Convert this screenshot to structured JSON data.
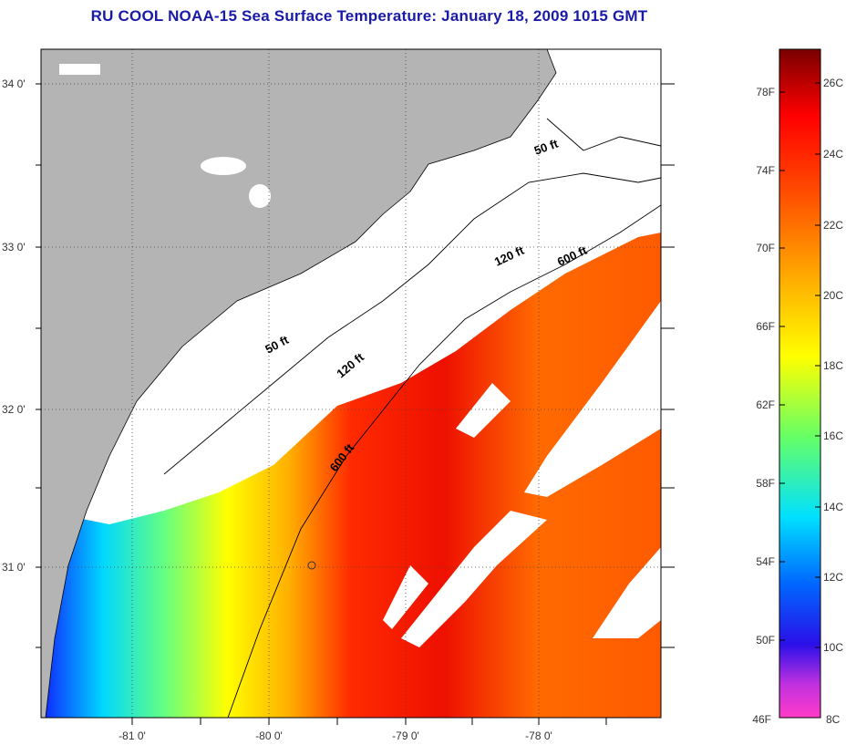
{
  "title": "RU COOL  NOAA-15  Sea Surface Temperature:  January 18, 2009 1015 GMT",
  "map": {
    "lat_labels": [
      "34 0'",
      "33 0'",
      "32 0'",
      "31 0'"
    ],
    "lon_labels": [
      "-81 0'",
      "-80 0'",
      "-79 0'",
      "-78 0'"
    ],
    "isobath_labels": [
      "50 ft",
      "120 ft",
      "600 ft",
      "50 ft",
      "120 ft",
      "600 ft"
    ],
    "colors": {
      "land": "#b4b4b4",
      "cloud": "#ffffff",
      "frame": "#000000"
    }
  },
  "colorbar": {
    "fahrenheit_labels": [
      "78F",
      "74F",
      "70F",
      "66F",
      "62F",
      "58F",
      "54F",
      "50F",
      "46F"
    ],
    "celsius_labels": [
      "26C",
      "24C",
      "22C",
      "20C",
      "18C",
      "16C",
      "14C",
      "12C",
      "10C",
      "8C"
    ],
    "colors": [
      "#ff3cc8",
      "#8c2cdc",
      "#0000ff",
      "#0096ff",
      "#00ffff",
      "#66ff66",
      "#ffff00",
      "#ffaa00",
      "#ff5000",
      "#ff0000",
      "#7a0000"
    ]
  }
}
